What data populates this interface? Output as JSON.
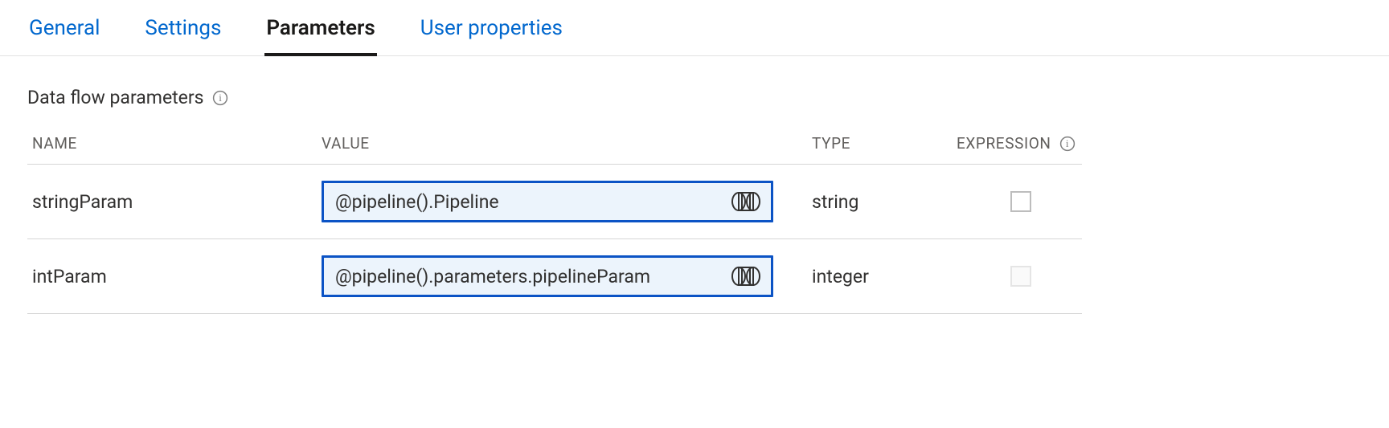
{
  "tabs": [
    {
      "label": "General",
      "active": false
    },
    {
      "label": "Settings",
      "active": false
    },
    {
      "label": "Parameters",
      "active": true
    },
    {
      "label": "User properties",
      "active": false
    }
  ],
  "section": {
    "title": "Data flow parameters",
    "info_tooltip": "info"
  },
  "table": {
    "columns": {
      "name": "NAME",
      "value": "VALUE",
      "type": "TYPE",
      "expression": "EXPRESSION"
    },
    "rows": [
      {
        "name": "stringParam",
        "value": "@pipeline().Pipeline",
        "type": "string",
        "expression_checked": false,
        "expression_disabled": false
      },
      {
        "name": "intParam",
        "value": "@pipeline().parameters.pipelineParam",
        "type": "integer",
        "expression_checked": false,
        "expression_disabled": true
      }
    ]
  },
  "colors": {
    "link_blue": "#0268ce",
    "field_border": "#0b53c5",
    "field_bg": "#ecf4fc",
    "text_dark": "#323130",
    "text_subtle": "#605e5c",
    "border_light": "#e1e1e1"
  }
}
